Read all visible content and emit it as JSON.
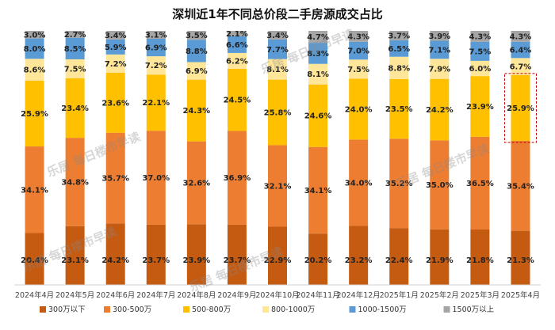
{
  "chart_data": {
    "type": "bar",
    "stacked": true,
    "title": "深圳近1年不同总价段二手房源成交占比",
    "xlabel": "",
    "ylabel": "",
    "ylim": [
      0,
      100
    ],
    "grid": false,
    "legend_position": "bottom",
    "categories": [
      "2024年4月",
      "2024年5月",
      "2024年6月",
      "2024年7月",
      "2024年8月",
      "2024年9月",
      "2024年10月",
      "2024年11月",
      "2024年12月",
      "2025年1月",
      "2025年2月",
      "2025年3月",
      "2025年4月"
    ],
    "series": [
      {
        "name": "300万以下",
        "color": "#c55a11",
        "values": [
          20.4,
          23.1,
          24.2,
          23.7,
          23.9,
          23.7,
          22.9,
          20.2,
          23.2,
          22.4,
          21.9,
          21.8,
          21.3
        ]
      },
      {
        "name": "300-500万",
        "color": "#ed7d31",
        "values": [
          34.1,
          34.8,
          35.7,
          37.0,
          32.6,
          36.9,
          32.1,
          34.1,
          34.0,
          35.2,
          35.0,
          36.5,
          35.4
        ]
      },
      {
        "name": "500-800万",
        "color": "#ffc000",
        "values": [
          25.9,
          23.4,
          23.6,
          22.1,
          24.3,
          24.5,
          25.8,
          24.6,
          24.0,
          23.5,
          24.2,
          23.9,
          25.9
        ]
      },
      {
        "name": "800-1000万",
        "color": "#ffe699",
        "values": [
          8.6,
          7.5,
          7.2,
          7.2,
          6.9,
          6.2,
          8.1,
          8.1,
          7.5,
          8.8,
          7.9,
          6.0,
          6.7
        ]
      },
      {
        "name": "1000-1500万",
        "color": "#5b9bd5",
        "values": [
          8.0,
          8.5,
          5.9,
          6.9,
          8.8,
          6.6,
          7.7,
          8.3,
          7.0,
          6.5,
          7.1,
          7.5,
          6.4
        ]
      },
      {
        "name": "1500万以上",
        "color": "#a5a5a5",
        "values": [
          3.0,
          2.7,
          3.4,
          3.1,
          3.5,
          2.1,
          3.4,
          4.7,
          4.3,
          3.7,
          3.9,
          4.3,
          4.3
        ]
      }
    ],
    "annotations": [
      {
        "type": "dashed-box",
        "category": "2025年4月",
        "series": "500-800万"
      }
    ]
  },
  "watermark": "乐居 每日楼市早读"
}
